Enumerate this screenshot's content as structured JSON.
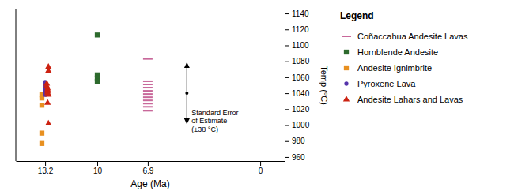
{
  "chart_data": {
    "type": "scatter",
    "xlabel": "Age (Ma)",
    "ylabel": "Temp (°C)",
    "xlim": [
      15.0,
      -1.5
    ],
    "ylim": [
      955,
      1145
    ],
    "xticks": [
      13.2,
      10,
      6.9,
      0
    ],
    "yticks": [
      960,
      980,
      1000,
      1020,
      1040,
      1060,
      1080,
      1100,
      1120,
      1140
    ],
    "grid": false,
    "legend": "right",
    "legend_title": "Legend",
    "series": [
      {
        "name": "Coñaccahua Andesite Lavas",
        "color": "#c8689a",
        "marker": "hline",
        "x": [
          6.9,
          6.9,
          6.9,
          6.9,
          6.9,
          6.9,
          6.9,
          6.9,
          6.9,
          6.9,
          6.9
        ],
        "values": [
          1083,
          1055,
          1051,
          1047,
          1043,
          1039,
          1035,
          1031,
          1027,
          1023,
          1018
        ]
      },
      {
        "name": "Hornblende Andesite",
        "color": "#2d6a2d",
        "marker": "square",
        "x": [
          10,
          10,
          10,
          10
        ],
        "values": [
          1113,
          1063,
          1059,
          1055
        ]
      },
      {
        "name": "Andesite Ignimbrite",
        "color": "#e89020",
        "marker": "square",
        "x": [
          13.4,
          13.4,
          13.4,
          13.4,
          13.4
        ],
        "values": [
          1038,
          1034,
          1025,
          990,
          977
        ]
      },
      {
        "name": "Pyroxene Lava",
        "color": "#5533aa",
        "marker": "circle",
        "x": [
          13.2,
          13.2,
          13.2,
          13.2,
          13.2,
          13.2,
          13.2,
          13.2,
          13.2
        ],
        "values": [
          1054,
          1052,
          1050,
          1048,
          1046,
          1044,
          1042,
          1040,
          1038
        ]
      },
      {
        "name": "Andesite Lahars and Lavas",
        "color": "#cc2211",
        "marker": "triangle",
        "x": [
          13.0,
          13.0,
          13.1,
          13.1,
          13.05,
          13.05,
          13.05,
          13.05,
          13.0,
          13.05,
          13.0
        ],
        "values": [
          1073,
          1068,
          1052,
          1049,
          1046,
          1044,
          1042,
          1040,
          1038,
          1028,
          1002
        ]
      }
    ],
    "annotations": [
      {
        "text": "Standard Error\nof Estimate\n(±38 °C)",
        "x": 4.5,
        "y": 1040,
        "error": 38
      }
    ]
  }
}
